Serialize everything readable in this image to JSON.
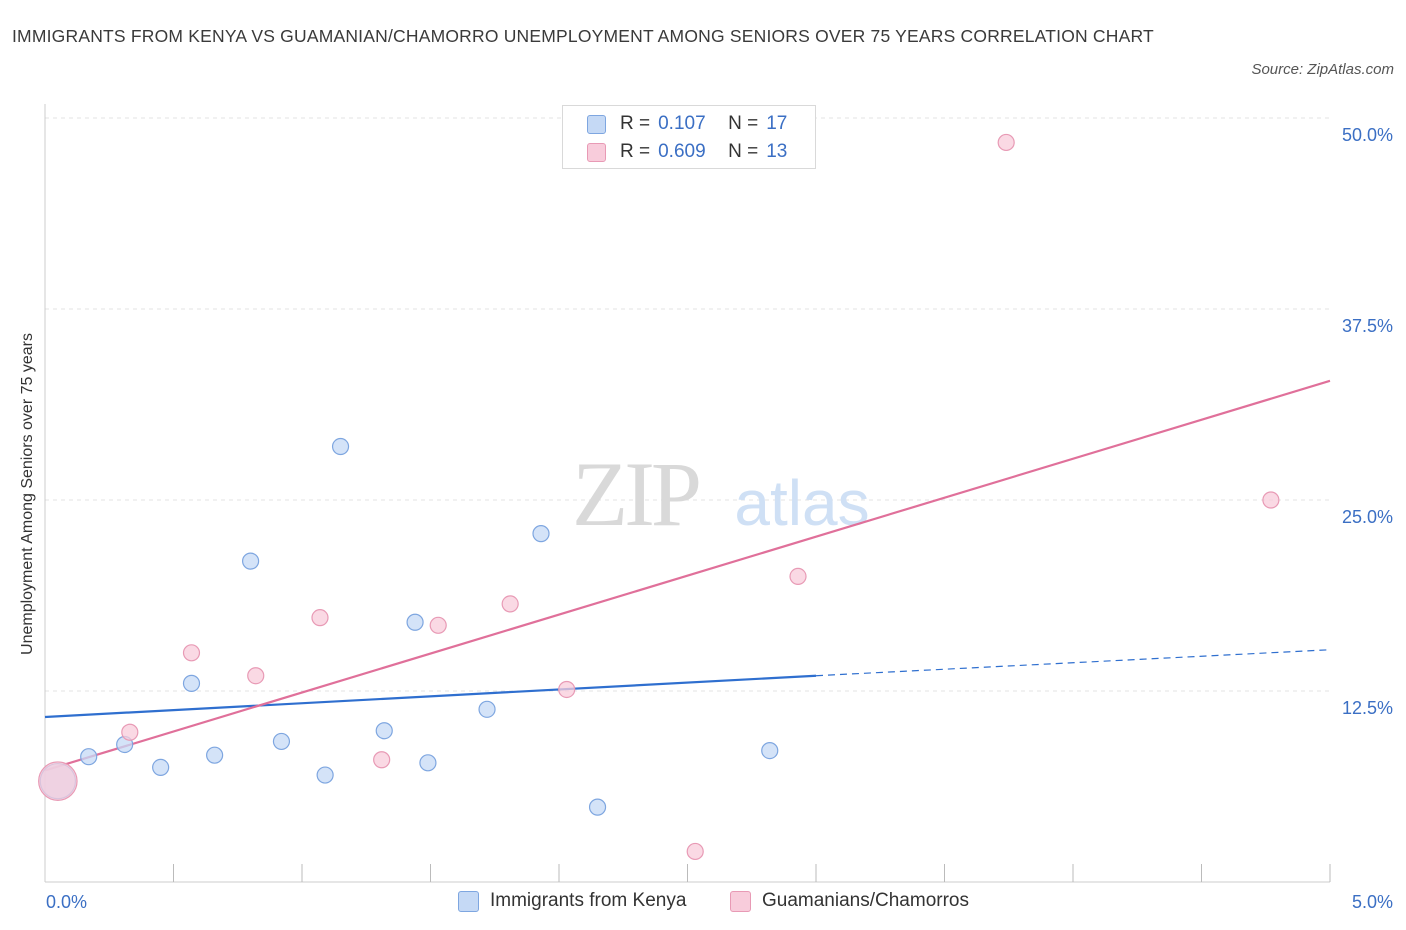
{
  "title": "IMMIGRANTS FROM KENYA VS GUAMANIAN/CHAMORRO UNEMPLOYMENT AMONG SENIORS OVER 75 YEARS CORRELATION CHART",
  "source": "Source: ZipAtlas.com",
  "watermark": {
    "zip": "ZIP",
    "atlas": "atlas"
  },
  "colors": {
    "blue": "#2f6fcf",
    "blue_fill": "#c5d9f5",
    "pink": "#e0709a",
    "pink_fill": "#f8ccdb",
    "axis_text": "#3b6fc4"
  },
  "legend": {
    "series": [
      {
        "r_label": "R =",
        "r_value": "0.107",
        "n_label": "N =",
        "n_value": "17"
      },
      {
        "r_label": "R =",
        "r_value": "0.609",
        "n_label": "N =",
        "n_value": "13"
      }
    ]
  },
  "bottom_legend": [
    "Immigrants from Kenya",
    "Guamanians/Chamorros"
  ],
  "chart_data": {
    "type": "scatter",
    "title": "IMMIGRANTS FROM KENYA VS GUAMANIAN/CHAMORRO UNEMPLOYMENT AMONG SENIORS OVER 75 YEARS CORRELATION CHART",
    "xlabel": "",
    "ylabel": "Unemployment Among Seniors over 75 years",
    "xlim": [
      0,
      5
    ],
    "ylim": [
      0,
      50
    ],
    "x_tick_labels": [
      "0.0%",
      "5.0%"
    ],
    "y_tick_labels": [
      "12.5%",
      "25.0%",
      "37.5%",
      "50.0%"
    ],
    "y_ticks": [
      12.5,
      25,
      37.5,
      50
    ],
    "grid": true,
    "series": [
      {
        "name": "Immigrants from Kenya",
        "x": [
          0.05,
          0.17,
          0.31,
          0.45,
          0.57,
          0.66,
          0.8,
          0.92,
          1.09,
          1.15,
          1.32,
          1.44,
          1.49,
          1.72,
          1.93,
          2.15,
          2.82
        ],
        "y": [
          6.6,
          8.2,
          9.0,
          7.5,
          13.0,
          8.3,
          21.0,
          9.2,
          7.0,
          28.5,
          9.9,
          17.0,
          7.8,
          11.3,
          22.8,
          4.9,
          8.6
        ],
        "size": [
          2.2,
          1,
          1,
          1,
          1,
          1,
          1,
          1,
          1,
          1,
          1,
          1,
          1,
          1,
          1,
          1,
          1
        ],
        "trend": {
          "x": [
            0,
            3.0
          ],
          "y": [
            10.8,
            13.5
          ],
          "dashed_to": [
            5.0,
            15.2
          ]
        }
      },
      {
        "name": "Guamanians/Chamorros",
        "x": [
          0.05,
          0.33,
          0.57,
          0.82,
          1.07,
          1.31,
          1.53,
          1.81,
          2.03,
          2.53,
          2.93,
          3.74,
          4.77
        ],
        "y": [
          6.6,
          9.8,
          15.0,
          13.5,
          17.3,
          8.0,
          16.8,
          18.2,
          12.6,
          2.0,
          20.0,
          48.4,
          25.0
        ],
        "size": [
          2.4,
          1,
          1,
          1,
          1,
          1,
          1,
          1,
          1,
          1,
          1,
          1,
          1
        ],
        "trend": {
          "x": [
            0,
            5.0
          ],
          "y": [
            7.3,
            32.8
          ]
        }
      }
    ]
  }
}
